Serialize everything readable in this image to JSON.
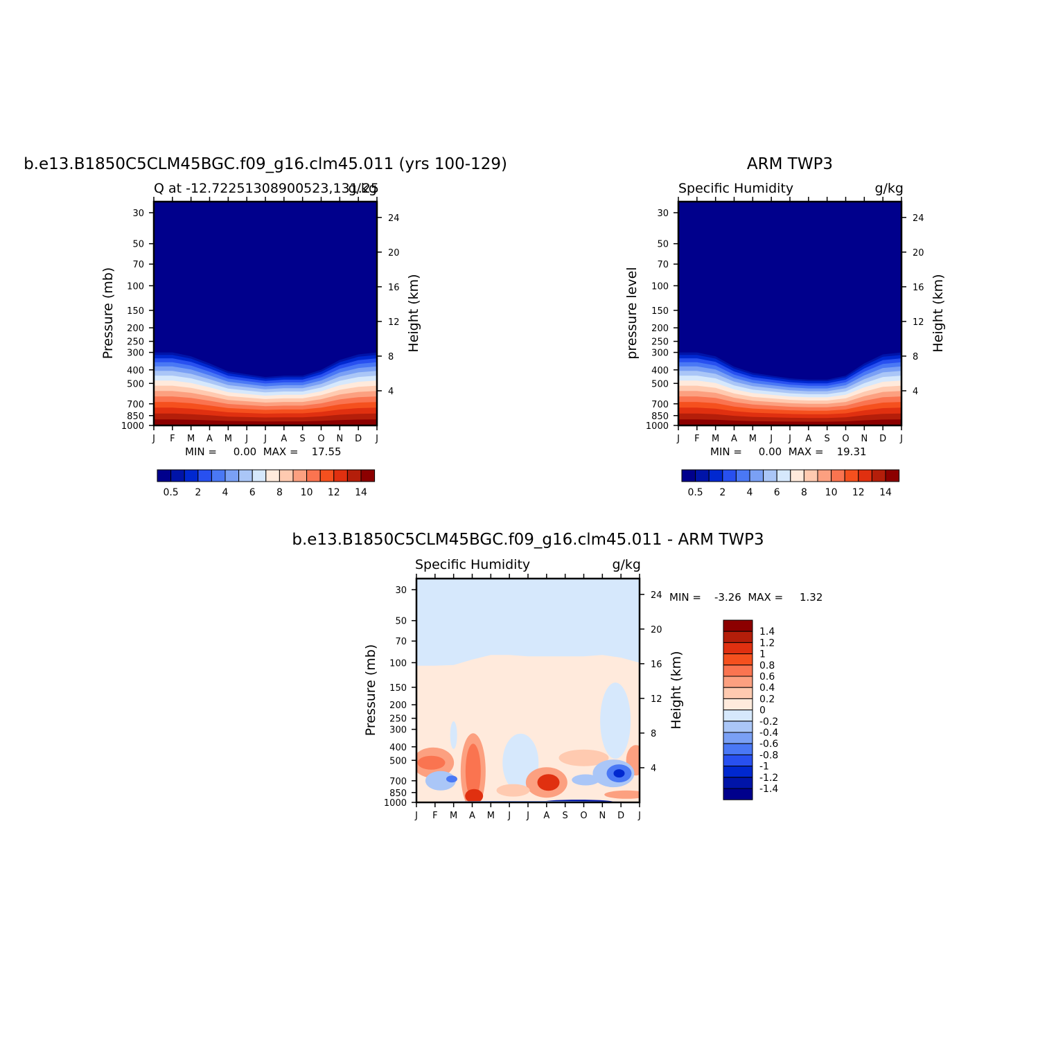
{
  "palette_blue_red": [
    "#00008c",
    "#0014a8",
    "#0028d0",
    "#2850f0",
    "#4a78f5",
    "#7aa0f5",
    "#aac6f7",
    "#d6e8fc",
    "#ffeadc",
    "#ffcab0",
    "#fca080",
    "#fa7450",
    "#f5501e",
    "#e03010",
    "#b41e0a",
    "#8c0000"
  ],
  "chart_data": [
    {
      "type": "heatmap",
      "title": "b.e13.B1850C5CLM45BGC.f09_g16.clm45.011 (yrs 100-129)",
      "subtitle_left": "Q at -12.72251308900523,131.25",
      "subtitle_right": "g/kg",
      "ylabel": "Pressure (mb)",
      "ylabel_right": "Height (km)",
      "x_ticks": [
        "J",
        "F",
        "M",
        "A",
        "M",
        "J",
        "J",
        "A",
        "S",
        "O",
        "N",
        "D",
        "J"
      ],
      "y_ticks": [
        "30",
        "50",
        "70",
        "100",
        "150",
        "200",
        "250",
        "300",
        "400",
        "500",
        "700",
        "850",
        "1000"
      ],
      "y_right_ticks": [
        "24",
        "20",
        "16",
        "12",
        "8",
        "4"
      ],
      "ylim": [
        1000,
        25
      ],
      "y_scale": "log",
      "min_max": "MIN =     0.00  MAX =    17.55",
      "min": 0.0,
      "max": 17.55,
      "colorbar_labels": [
        "0.5",
        "2",
        "4",
        "6",
        "8",
        "10",
        "12",
        "14"
      ],
      "moisture_top_pressure": [
        300,
        300,
        320,
        360,
        410,
        430,
        450,
        440,
        440,
        400,
        340,
        310,
        300
      ]
    },
    {
      "type": "heatmap",
      "title": "ARM TWP3",
      "subtitle_left": "Specific Humidity",
      "subtitle_right": "g/kg",
      "ylabel": "pressure level",
      "ylabel_right": "Height (km)",
      "x_ticks": [
        "J",
        "F",
        "M",
        "A",
        "M",
        "J",
        "J",
        "A",
        "S",
        "O",
        "N",
        "D",
        "J"
      ],
      "y_ticks": [
        "30",
        "50",
        "70",
        "100",
        "150",
        "200",
        "250",
        "300",
        "400",
        "500",
        "700",
        "850",
        "1000"
      ],
      "y_right_ticks": [
        "24",
        "20",
        "16",
        "12",
        "8",
        "4"
      ],
      "ylim": [
        1000,
        25
      ],
      "y_scale": "log",
      "min_max": "MIN =     0.00  MAX =    19.31",
      "min": 0.0,
      "max": 19.31,
      "colorbar_labels": [
        "0.5",
        "2",
        "4",
        "6",
        "8",
        "10",
        "12",
        "14"
      ],
      "moisture_top_pressure": [
        300,
        300,
        320,
        380,
        420,
        440,
        460,
        470,
        470,
        440,
        360,
        310,
        300
      ]
    },
    {
      "type": "heatmap",
      "title": "b.e13.B1850C5CLM45BGC.f09_g16.clm45.011 - ARM TWP3",
      "subtitle_left": "Specific Humidity",
      "subtitle_right": "g/kg",
      "ylabel": "Pressure (mb)",
      "ylabel_right": "Height (km)",
      "x_ticks": [
        "J",
        "F",
        "M",
        "A",
        "M",
        "J",
        "J",
        "A",
        "S",
        "O",
        "N",
        "D",
        "J"
      ],
      "y_ticks": [
        "30",
        "50",
        "70",
        "100",
        "150",
        "200",
        "250",
        "300",
        "400",
        "500",
        "700",
        "850",
        "1000"
      ],
      "y_right_ticks": [
        "24",
        "20",
        "16",
        "12",
        "8",
        "4"
      ],
      "ylim": [
        1000,
        25
      ],
      "y_scale": "log",
      "min_max": "MIN =    -3.26  MAX =     1.32",
      "min": -3.26,
      "max": 1.32,
      "colorbar_labels": [
        "1.4",
        "1.2",
        "1",
        "0.8",
        "0.6",
        "0.4",
        "0.2",
        "0",
        "-0.2",
        "-0.4",
        "-0.6",
        "-0.8",
        "-1",
        "-1.2",
        "-1.4"
      ],
      "positive_anomaly_top_pressure": [
        105,
        105,
        104,
        95,
        88,
        88,
        90,
        90,
        90,
        90,
        88,
        92,
        100
      ]
    }
  ]
}
